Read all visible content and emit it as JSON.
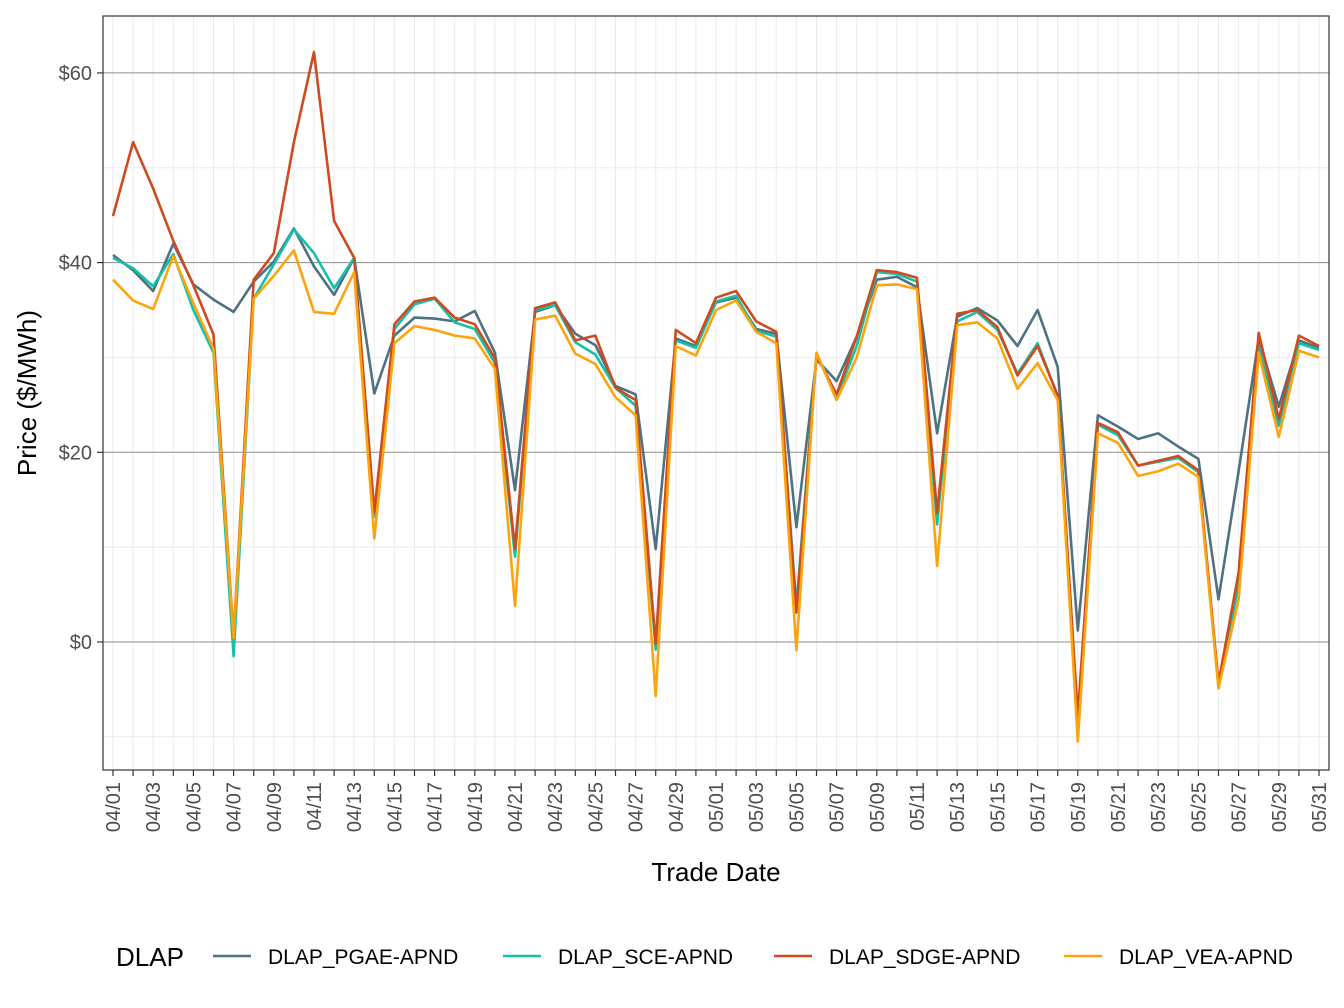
{
  "chart_data": {
    "type": "line",
    "title": "",
    "xlabel": "Trade Date",
    "ylabel": "Price ($/MWh)",
    "ylim": [
      -13.5,
      66
    ],
    "y_ticks": [
      0,
      20,
      40,
      60
    ],
    "y_tick_labels": [
      "$0",
      "$20",
      "$40",
      "$60"
    ],
    "x_tick_labels": [
      "04/01",
      "04/03",
      "04/05",
      "04/07",
      "04/09",
      "04/11",
      "04/13",
      "04/15",
      "04/17",
      "04/19",
      "04/21",
      "04/23",
      "04/25",
      "04/27",
      "04/29",
      "05/01",
      "05/03",
      "05/05",
      "05/07",
      "05/09",
      "05/11",
      "05/13",
      "05/15",
      "05/17",
      "05/19",
      "05/21",
      "05/23",
      "05/25",
      "05/27",
      "05/29",
      "05/31"
    ],
    "grid": true,
    "legend": {
      "title": "DLAP",
      "position": "bottom"
    },
    "x": [
      "04/01",
      "04/02",
      "04/03",
      "04/04",
      "04/05",
      "04/06",
      "04/07",
      "04/08",
      "04/09",
      "04/10",
      "04/11",
      "04/12",
      "04/13",
      "04/14",
      "04/15",
      "04/16",
      "04/17",
      "04/18",
      "04/19",
      "04/20",
      "04/21",
      "04/22",
      "04/23",
      "04/24",
      "04/25",
      "04/26",
      "04/27",
      "04/28",
      "04/29",
      "04/30",
      "05/01",
      "05/02",
      "05/03",
      "05/04",
      "05/05",
      "05/06",
      "05/07",
      "05/08",
      "05/09",
      "05/10",
      "05/11",
      "05/12",
      "05/13",
      "05/14",
      "05/15",
      "05/16",
      "05/17",
      "05/18",
      "05/19",
      "05/20",
      "05/21",
      "05/22",
      "05/23",
      "05/24",
      "05/25",
      "05/26",
      "05/27",
      "05/28",
      "05/29",
      "05/30",
      "05/31"
    ],
    "series": [
      {
        "name": "DLAP_PGAE-APND",
        "color": "#4f7282",
        "values": [
          40.8,
          39.2,
          37.0,
          42.0,
          37.7,
          36.1,
          34.8,
          38.0,
          40.1,
          43.6,
          39.6,
          36.6,
          40.5,
          26.2,
          32.3,
          34.2,
          34.1,
          33.8,
          34.9,
          30.5,
          16.0,
          34.8,
          35.5,
          32.5,
          31.3,
          27.0,
          26.1,
          9.8,
          32.0,
          31.2,
          35.8,
          36.3,
          33.0,
          32.5,
          12.1,
          29.8,
          27.5,
          32.2,
          38.2,
          38.5,
          37.4,
          22.0,
          34.3,
          35.2,
          33.9,
          31.2,
          35.0,
          29.0,
          1.2,
          23.9,
          22.7,
          21.4,
          22.0,
          20.6,
          19.3,
          4.5,
          18.0,
          32.0,
          24.8,
          31.8,
          31.0
        ]
      },
      {
        "name": "DLAP_SCE-APND",
        "color": "#16bfa9",
        "values": [
          40.5,
          39.4,
          37.5,
          40.9,
          35.0,
          30.5,
          -1.5,
          36.2,
          39.8,
          43.5,
          41.0,
          37.3,
          40.5,
          13.2,
          33.0,
          35.6,
          36.2,
          33.7,
          33.0,
          29.4,
          9.0,
          35.0,
          35.5,
          31.6,
          30.3,
          26.8,
          24.9,
          -0.8,
          31.8,
          31.0,
          35.9,
          36.5,
          32.8,
          32.2,
          3.8,
          30.4,
          25.8,
          31.2,
          39.0,
          38.8,
          38.0,
          12.4,
          33.8,
          34.8,
          32.9,
          28.3,
          31.5,
          25.9,
          -8.2,
          22.9,
          21.8,
          18.6,
          19.0,
          19.4,
          17.9,
          -4.7,
          6.0,
          31.2,
          22.8,
          31.5,
          30.8
        ]
      },
      {
        "name": "DLAP_SDGE-APND",
        "color": "#cf4a1f",
        "values": [
          44.9,
          52.7,
          47.8,
          42.3,
          37.6,
          32.4,
          0.5,
          38.2,
          41.0,
          52.7,
          62.2,
          44.4,
          40.5,
          13.7,
          33.5,
          35.9,
          36.3,
          34.2,
          33.5,
          29.9,
          9.8,
          35.2,
          35.8,
          31.8,
          32.3,
          26.8,
          25.5,
          -0.2,
          32.9,
          31.5,
          36.3,
          37.0,
          33.8,
          32.7,
          3.1,
          30.2,
          26.1,
          32.2,
          39.2,
          39.0,
          38.4,
          13.6,
          34.6,
          35.0,
          33.2,
          28.1,
          31.2,
          26.0,
          -7.8,
          23.1,
          22.1,
          18.6,
          19.1,
          19.6,
          18.1,
          -4.3,
          7.3,
          32.6,
          23.5,
          32.3,
          31.2
        ]
      },
      {
        "name": "DLAP_VEA-APND",
        "color": "#fca40e",
        "values": [
          38.2,
          36.0,
          35.1,
          40.7,
          35.7,
          30.9,
          0.4,
          36.2,
          38.6,
          41.3,
          34.8,
          34.6,
          39.0,
          10.9,
          31.5,
          33.3,
          32.9,
          32.3,
          32.0,
          28.8,
          3.8,
          34.0,
          34.4,
          30.4,
          29.3,
          25.8,
          23.9,
          -5.7,
          31.2,
          30.2,
          35.0,
          36.0,
          32.7,
          31.5,
          -0.9,
          30.5,
          25.5,
          30.0,
          37.6,
          37.7,
          37.2,
          8.0,
          33.4,
          33.7,
          32.0,
          26.7,
          29.4,
          25.5,
          -10.5,
          22.0,
          21.0,
          17.5,
          18.0,
          18.8,
          17.4,
          -4.9,
          4.5,
          30.5,
          21.6,
          30.7,
          30.0
        ]
      }
    ]
  }
}
